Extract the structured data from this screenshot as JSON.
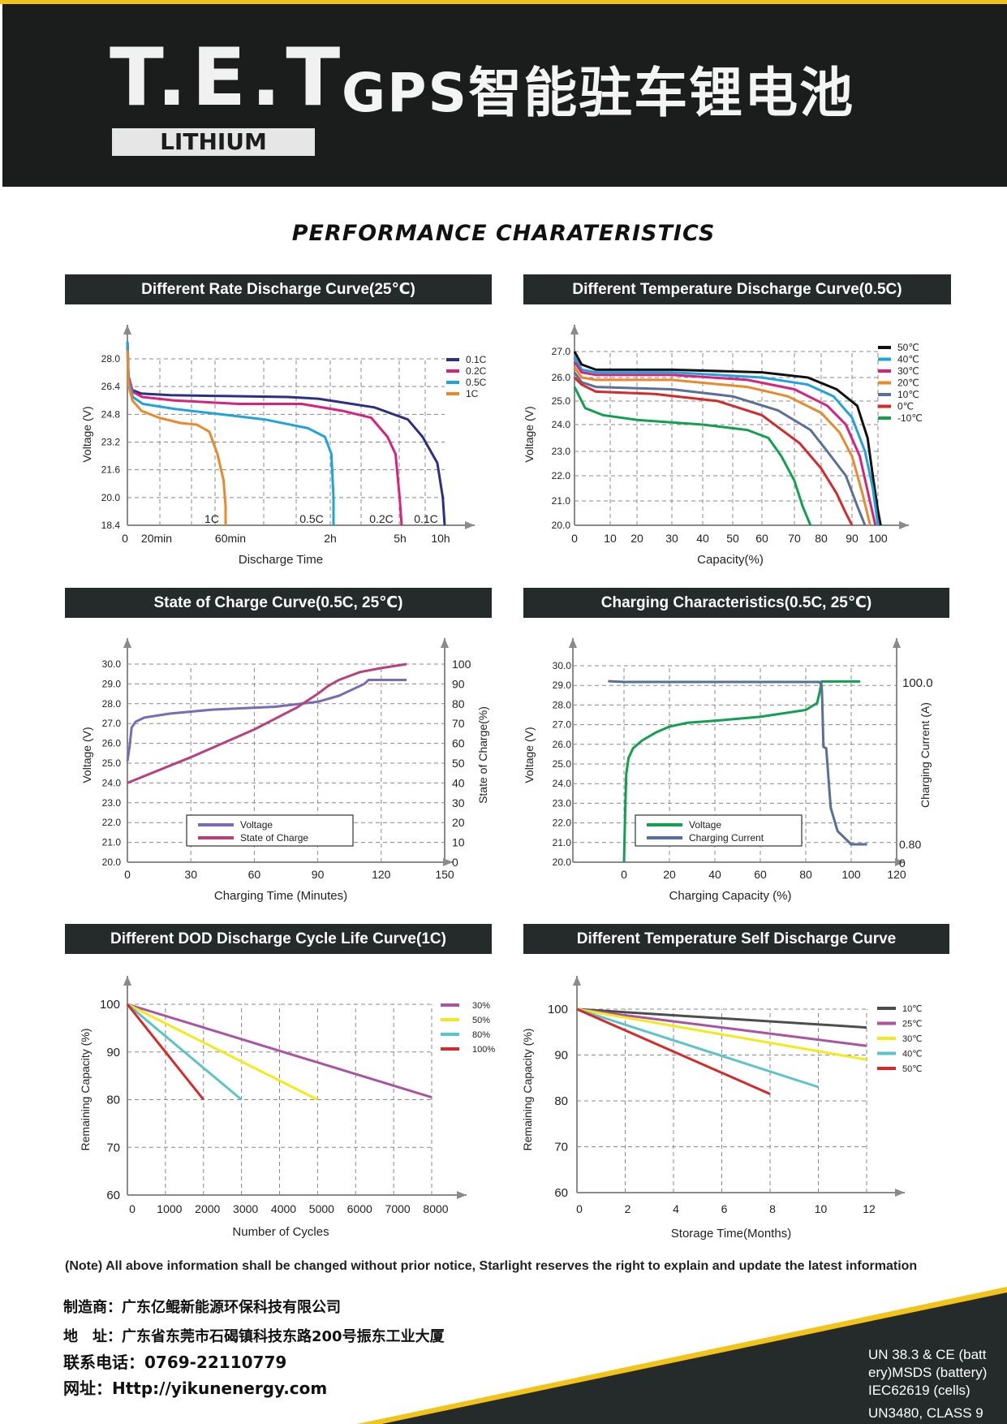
{
  "header": {
    "logo_main": "T.E.T",
    "logo_sub": "LITHIUM",
    "title": "GPS智能驻车锂电池"
  },
  "section_title": "PERFORMANCE CHARATERISTICS",
  "colors": {
    "accent": "#f2c318",
    "dark": "#1b1c1c",
    "panel": "#252a2a"
  },
  "panels": {
    "rate": {
      "title": "Different Rate Discharge Curve(25℃)"
    },
    "temp": {
      "title": "Different Temperature Discharge Curve(0.5C)"
    },
    "soc": {
      "title": "State of Charge Curve(0.5C, 25℃)"
    },
    "charge": {
      "title": "Charging Characteristics(0.5C, 25℃)"
    },
    "dod": {
      "title": "Different DOD Discharge Cycle Life Curve(1C)"
    },
    "self": {
      "title": "Different Temperature Self Discharge Curve"
    }
  },
  "chart_data": [
    {
      "id": "rate",
      "type": "line",
      "title": "Different Rate Discharge Curve(25℃)",
      "xlabel": "Discharge Time",
      "ylabel": "Voltage (V)",
      "x_ticks": [
        "0",
        "20min",
        "60min",
        "2h",
        "5h",
        "10h"
      ],
      "y_ticks": [
        "18.4",
        "20.0",
        "21.6",
        "23.2",
        "24.8",
        "26.4",
        "28.0"
      ],
      "ylim": [
        18.4,
        29.0
      ],
      "legend": [
        "0.1C",
        "0.2C",
        "0.5C",
        "1C"
      ],
      "curve_labels": [
        "1C",
        "0.5C",
        "0.2C",
        "0.1C"
      ],
      "series": [
        {
          "name": "0.1C",
          "color": "#2d2f82",
          "x": [
            0,
            0.02,
            0.1,
            0.3,
            1,
            2.5,
            4,
            4.8,
            5.4,
            6.3,
            7.2,
            7.6,
            8.0,
            8.15,
            8.2
          ],
          "y": [
            29.0,
            27.0,
            26.2,
            26.0,
            25.9,
            25.85,
            25.8,
            25.7,
            25.5,
            25.2,
            24.5,
            23.5,
            22.0,
            20.0,
            18.4
          ]
        },
        {
          "name": "0.2C",
          "color": "#d6237c",
          "x": [
            0,
            0.02,
            0.1,
            0.3,
            1,
            2.5,
            4,
            5,
            5.7,
            6.1,
            6.3,
            6.4,
            6.45
          ],
          "y": [
            29.0,
            27.0,
            26.1,
            25.8,
            25.6,
            25.4,
            25.4,
            25.0,
            24.6,
            23.5,
            22.5,
            20.0,
            18.4
          ]
        },
        {
          "name": "0.5C",
          "color": "#1fa3dc",
          "x": [
            0,
            0.02,
            0.1,
            0.3,
            1,
            2,
            3,
            4,
            4.4,
            4.55,
            4.6,
            4.6
          ],
          "y": [
            29.0,
            26.8,
            25.8,
            25.4,
            25.1,
            24.8,
            24.5,
            24.0,
            23.5,
            22.5,
            20.0,
            18.4
          ]
        },
        {
          "name": "1C",
          "color": "#e88a2c",
          "x": [
            0,
            0.02,
            0.1,
            0.3,
            0.7,
            1.2,
            1.6,
            1.9,
            2.1,
            2.25,
            2.3,
            2.3
          ],
          "y": [
            28.5,
            26.5,
            25.6,
            25.0,
            24.6,
            24.3,
            24.2,
            23.8,
            22.5,
            21.0,
            19.5,
            18.4
          ]
        }
      ]
    },
    {
      "id": "temp",
      "type": "line",
      "title": "Different Temperature Discharge Curve(0.5C)",
      "xlabel": "Capacity(%)",
      "ylabel": "Voltage (V)",
      "x_ticks": [
        "0",
        "10",
        "20",
        "30",
        "40",
        "50",
        "60",
        "70",
        "80",
        "90",
        "100"
      ],
      "y_ticks": [
        "20.0",
        "21.0",
        "22.0",
        "23.0",
        "24.0",
        "25.0",
        "26.0",
        "27.0"
      ],
      "legend": [
        "50℃",
        "40℃",
        "30℃",
        "20℃",
        "10℃",
        "0℃",
        "-10℃"
      ],
      "series": [
        {
          "name": "50℃",
          "color": "#111111",
          "x": [
            0,
            2,
            6,
            30,
            60,
            75,
            85,
            92,
            96,
            98,
            100,
            101
          ],
          "y": [
            27.0,
            26.5,
            26.3,
            26.3,
            26.2,
            26.0,
            25.5,
            24.8,
            23.5,
            22.0,
            20.6,
            20.0
          ]
        },
        {
          "name": "40℃",
          "color": "#1fa3dc",
          "x": [
            0,
            2,
            6,
            30,
            60,
            75,
            84,
            90,
            95,
            98,
            100
          ],
          "y": [
            26.8,
            26.3,
            26.2,
            26.2,
            26.0,
            25.7,
            25.2,
            24.3,
            23.0,
            21.5,
            20.0
          ]
        },
        {
          "name": "30℃",
          "color": "#d6237c",
          "x": [
            0,
            2,
            6,
            30,
            55,
            70,
            82,
            88,
            93,
            96,
            99
          ],
          "y": [
            26.6,
            26.2,
            26.1,
            26.1,
            25.9,
            25.5,
            24.8,
            24.0,
            22.8,
            21.4,
            20.0
          ]
        },
        {
          "name": "20℃",
          "color": "#e88a2c",
          "x": [
            0,
            2,
            6,
            30,
            55,
            68,
            80,
            86,
            90,
            94,
            97
          ],
          "y": [
            26.4,
            26.0,
            25.9,
            25.9,
            25.6,
            25.2,
            24.5,
            23.7,
            22.8,
            21.3,
            20.0
          ]
        },
        {
          "name": "10℃",
          "color": "#5a6e99",
          "x": [
            0,
            2,
            6,
            30,
            50,
            65,
            76,
            82,
            88,
            92,
            95
          ],
          "y": [
            26.2,
            25.8,
            25.6,
            25.5,
            25.2,
            24.6,
            23.8,
            23.0,
            22.0,
            20.8,
            20.0
          ]
        },
        {
          "name": "0℃",
          "color": "#d42a2a",
          "x": [
            0,
            2,
            6,
            25,
            45,
            60,
            72,
            80,
            85,
            88,
            90
          ],
          "y": [
            26.0,
            25.7,
            25.4,
            25.3,
            25.0,
            24.4,
            23.3,
            22.3,
            21.3,
            20.5,
            20.0
          ]
        },
        {
          "name": "-10℃",
          "color": "#12a050",
          "x": [
            0,
            3,
            8,
            20,
            40,
            55,
            62,
            66,
            70,
            73,
            76
          ],
          "y": [
            25.6,
            24.7,
            24.4,
            24.2,
            24.0,
            23.8,
            23.5,
            22.8,
            21.8,
            20.8,
            20.0
          ]
        }
      ]
    },
    {
      "id": "soc",
      "type": "line",
      "title": "State of Charge Curve(0.5C, 25℃)",
      "xlabel": "Charging Time (Minutes)",
      "ylabel": "Voltage (V)",
      "y2label": "State of Charge(%)",
      "x_ticks": [
        "0",
        "30",
        "60",
        "90",
        "120",
        "150"
      ],
      "y_ticks": [
        "20.0",
        "21.0",
        "22.0",
        "23.0",
        "24.0",
        "25.0",
        "26.0",
        "27.0",
        "28.0",
        "29.0",
        "30.0"
      ],
      "y2_ticks": [
        "0",
        "10",
        "20",
        "30",
        "40",
        "50",
        "60",
        "70",
        "80",
        "90",
        "100"
      ],
      "legend": [
        "Voltage",
        "State of Charge"
      ],
      "series": [
        {
          "name": "Voltage",
          "color": "#7b6bb5",
          "axis": "y",
          "x": [
            0,
            1,
            2,
            4,
            8,
            20,
            40,
            70,
            90,
            100,
            108,
            112,
            113,
            114,
            132
          ],
          "y": [
            25.1,
            25.8,
            26.8,
            27.1,
            27.3,
            27.5,
            27.7,
            27.85,
            28.1,
            28.4,
            28.8,
            29.0,
            29.1,
            29.2,
            29.2
          ]
        },
        {
          "name": "State of Charge",
          "color": "#b8407d",
          "axis": "y2",
          "x": [
            0,
            30,
            60,
            80,
            90,
            95,
            100,
            110,
            120,
            132
          ],
          "y": [
            40,
            53,
            67,
            78,
            85,
            89,
            92,
            96,
            98,
            100
          ]
        }
      ]
    },
    {
      "id": "charge",
      "type": "line",
      "title": "Charging Characteristics(0.5C, 25℃)",
      "xlabel": "Charging Capacity (%)",
      "ylabel": "Voltage (V)",
      "y2label": "Charging Current (A)",
      "x_ticks": [
        "0",
        "20",
        "40",
        "60",
        "80",
        "100",
        "120"
      ],
      "y_ticks": [
        "20.0",
        "21.0",
        "22.0",
        "23.0",
        "24.0",
        "25.0",
        "26.0",
        "27.0",
        "28.0",
        "29.0",
        "30.0"
      ],
      "y2_ticks": [
        "0",
        "0.80",
        "100.0"
      ],
      "legend": [
        "Voltage",
        "Charging Current"
      ],
      "series": [
        {
          "name": "Voltage",
          "color": "#12a050",
          "axis": "y",
          "x": [
            0,
            0.5,
            1,
            2,
            4,
            8,
            14,
            20,
            28,
            40,
            60,
            80,
            85,
            86,
            87,
            104
          ],
          "y": [
            20.0,
            22.5,
            24.5,
            25.3,
            25.8,
            26.2,
            26.6,
            26.9,
            27.1,
            27.2,
            27.4,
            27.75,
            28.1,
            28.6,
            29.2,
            29.2
          ]
        },
        {
          "name": "Charging Current",
          "color": "#5a6e99",
          "axis": "y2",
          "x": [
            -7,
            0,
            40,
            86,
            87,
            87.2,
            87.8,
            89,
            91,
            94,
            100,
            107
          ],
          "y": [
            100.5,
            100,
            100,
            100,
            98,
            90,
            60,
            30,
            12,
            5,
            1,
            1
          ]
        }
      ]
    },
    {
      "id": "dod",
      "type": "line",
      "title": "Different DOD Discharge Cycle Life Curve(1C)",
      "xlabel": "Number of Cycles",
      "ylabel": "Remaining Capacity (%)",
      "x_ticks": [
        "0",
        "1000",
        "2000",
        "3000",
        "4000",
        "5000",
        "6000",
        "7000",
        "8000"
      ],
      "y_ticks": [
        "60",
        "70",
        "80",
        "90",
        "100"
      ],
      "legend": [
        "30%",
        "50%",
        "80%",
        "100%"
      ],
      "series": [
        {
          "name": "30%",
          "color": "#a954a2",
          "x": [
            0,
            8000
          ],
          "y": [
            100,
            80.5
          ]
        },
        {
          "name": "50%",
          "color": "#f3ea1b",
          "x": [
            0,
            5000
          ],
          "y": [
            100,
            80
          ]
        },
        {
          "name": "80%",
          "color": "#5cc3c8",
          "x": [
            0,
            3000
          ],
          "y": [
            100,
            80
          ]
        },
        {
          "name": "100%",
          "color": "#d42a2a",
          "x": [
            0,
            2000
          ],
          "y": [
            100,
            80
          ]
        }
      ]
    },
    {
      "id": "self",
      "type": "line",
      "title": "Different Temperature Self Discharge Curve",
      "xlabel": "Storage Time(Months)",
      "ylabel": "Remaining Capacity (%)",
      "x_ticks": [
        "0",
        "2",
        "4",
        "6",
        "8",
        "10",
        "12"
      ],
      "y_ticks": [
        "60",
        "70",
        "80",
        "90",
        "100"
      ],
      "legend": [
        "10℃",
        "25℃",
        "30℃",
        "40℃",
        "50℃"
      ],
      "series": [
        {
          "name": "10℃",
          "color": "#4d4d4d",
          "x": [
            0,
            12
          ],
          "y": [
            100,
            96
          ]
        },
        {
          "name": "25℃",
          "color": "#a954a2",
          "x": [
            0,
            12
          ],
          "y": [
            100,
            92
          ]
        },
        {
          "name": "30℃",
          "color": "#f3ea1b",
          "x": [
            0,
            12
          ],
          "y": [
            100,
            89
          ]
        },
        {
          "name": "40℃",
          "color": "#5cc3c8",
          "x": [
            0,
            10
          ],
          "y": [
            100,
            83
          ]
        },
        {
          "name": "50℃",
          "color": "#d42a2a",
          "x": [
            0,
            8
          ],
          "y": [
            100,
            81.5
          ]
        }
      ]
    }
  ],
  "note": "(Note) All above information shall be changed without prior notice, Starlight reserves the right to explain and update the latest information",
  "contact": {
    "maker": "制造商：广东亿鲲新能源环保科技有限公司",
    "address": "地　址：广东省东莞市石碣镇科技东路200号振东工业大厦",
    "phone": "联系电话：0769-22110779",
    "website": "网址：Http://yikunenergy.com"
  },
  "certs": {
    "line1": "UN 38.3 & CE (batt",
    "line2": "ery)MSDS (battery)",
    "line3": "IEC62619 (cells)",
    "line4": "UN3480, CLASS 9"
  }
}
